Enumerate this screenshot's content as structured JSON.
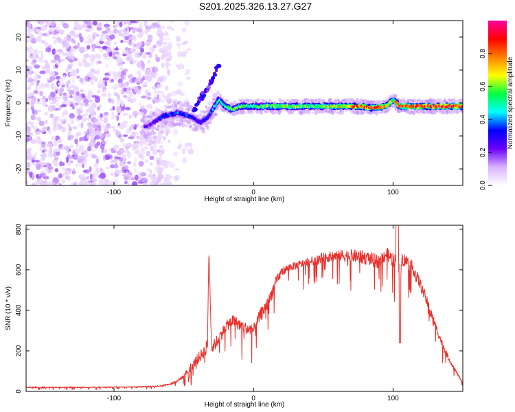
{
  "title": "S201.2025.326.13.27.G27",
  "chart_data": [
    {
      "type": "heatmap",
      "name": "spectrogram",
      "xlabel": "Height of straight line (km)",
      "ylabel": "Frequency (Hz)",
      "xlim": [
        -163,
        150
      ],
      "ylim": [
        -25,
        25
      ],
      "xticks": [
        -100,
        0,
        100
      ],
      "xtick_labels": [
        "-100",
        "0",
        "100"
      ],
      "yticks": [
        -20,
        -10,
        0,
        10,
        20
      ],
      "ytick_labels": [
        "-20",
        "-10",
        "0",
        "10",
        "20"
      ],
      "colorbar": {
        "label": "Normalized spectral amplitude",
        "range": [
          0,
          1
        ],
        "ticks": [
          0.0,
          0.2,
          0.4,
          0.6,
          0.8
        ],
        "tick_labels": [
          "0.0",
          "0.2",
          "0.4",
          "0.6",
          "0.8"
        ],
        "colors": [
          "#ffffff",
          "#d9b3ff",
          "#6a00ff",
          "#0000ff",
          "#00ffff",
          "#00ff40",
          "#ffff00",
          "#ff8000",
          "#ff0000",
          "#ff00a0"
        ]
      },
      "ridge": {
        "x": [
          -75,
          -65,
          -55,
          -45,
          -38,
          -32,
          -28,
          -25,
          -20,
          -15,
          -10,
          -5,
          0,
          20,
          40,
          60,
          75,
          85,
          95,
          100,
          105,
          120,
          150
        ],
        "y": [
          -7,
          -4,
          -3,
          -4,
          -6,
          -4,
          -1,
          1,
          -1,
          -2,
          -1,
          -1,
          -1,
          -1,
          -1,
          -1,
          -1,
          -1.5,
          -1,
          1,
          -1,
          -1,
          -1
        ],
        "peak_amplitude": [
          0.25,
          0.35,
          0.4,
          0.35,
          0.3,
          0.35,
          0.45,
          0.5,
          0.55,
          0.6,
          0.6,
          0.55,
          0.6,
          0.65,
          0.6,
          0.7,
          0.85,
          0.9,
          0.8,
          0.7,
          0.9,
          0.95,
          0.95
        ]
      },
      "secondary_ridge": {
        "x": [
          -45,
          -40,
          -35,
          -30,
          -25
        ],
        "y": [
          -5,
          0,
          3,
          7,
          12
        ]
      },
      "noise_region_x": [
        -163,
        -60
      ]
    },
    {
      "type": "line",
      "name": "snr",
      "xlabel": "Height of straight line (km)",
      "ylabel": "SNR (10 * v/v)",
      "xlim": [
        -163,
        150
      ],
      "ylim": [
        0,
        820
      ],
      "xticks": [
        -100,
        0,
        100
      ],
      "xtick_labels": [
        "-100",
        "0",
        "100"
      ],
      "yticks": [
        0,
        200,
        400,
        600,
        800
      ],
      "ytick_labels": [
        "0",
        "200",
        "400",
        "600",
        "800"
      ],
      "series": [
        {
          "name": "SNR",
          "color": "#e8302c",
          "x": [
            -163,
            -150,
            -130,
            -110,
            -90,
            -70,
            -60,
            -55,
            -50,
            -45,
            -40,
            -35,
            -33,
            -32,
            -30,
            -25,
            -20,
            -15,
            -10,
            -5,
            0,
            5,
            10,
            15,
            20,
            25,
            30,
            40,
            50,
            60,
            70,
            80,
            90,
            95,
            100,
            103,
            105,
            110,
            115,
            120,
            125,
            130,
            135,
            140,
            145,
            150
          ],
          "base": [
            20,
            20,
            20,
            20,
            22,
            25,
            35,
            50,
            75,
            120,
            160,
            200,
            230,
            700,
            210,
            260,
            320,
            350,
            330,
            310,
            300,
            380,
            430,
            520,
            590,
            610,
            620,
            640,
            660,
            670,
            670,
            660,
            640,
            680,
            650,
            640,
            660,
            640,
            600,
            520,
            430,
            330,
            240,
            160,
            100,
            40
          ],
          "noise": [
            10,
            10,
            10,
            10,
            10,
            12,
            15,
            20,
            40,
            90,
            110,
            130,
            130,
            0,
            120,
            130,
            110,
            120,
            120,
            120,
            120,
            130,
            130,
            130,
            90,
            80,
            80,
            90,
            100,
            120,
            130,
            140,
            140,
            140,
            140,
            140,
            140,
            140,
            130,
            120,
            110,
            90,
            70,
            50,
            30,
            15
          ]
        }
      ]
    }
  ]
}
